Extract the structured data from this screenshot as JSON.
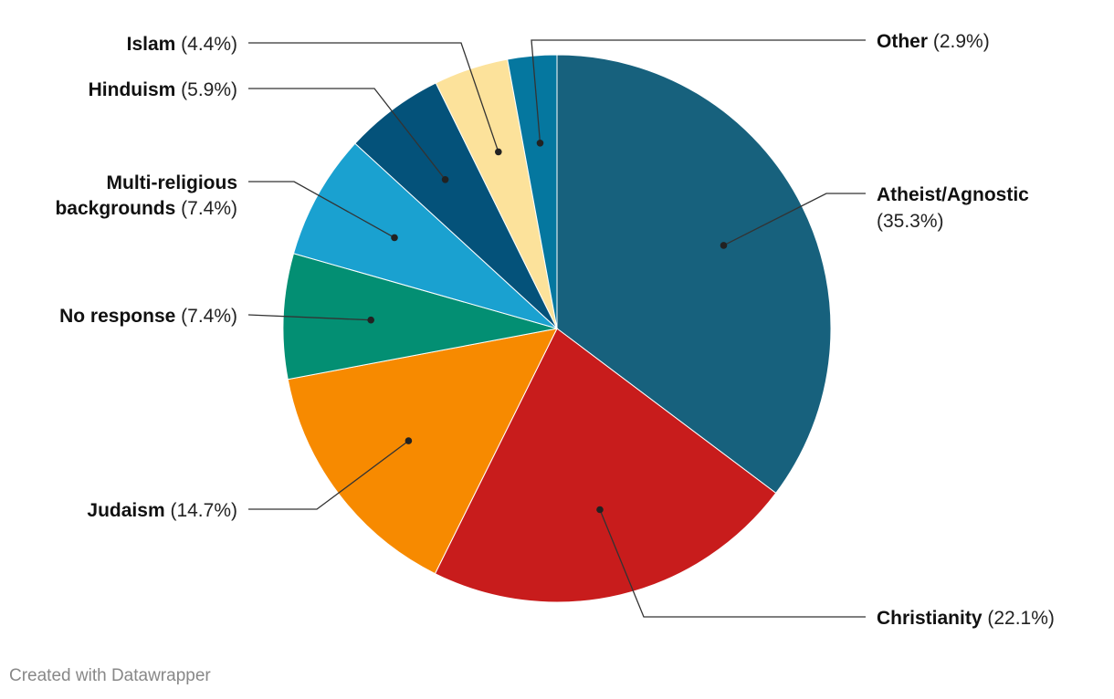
{
  "chart_data": {
    "type": "pie",
    "slices": [
      {
        "label": "Atheist/Agnostic",
        "value": 35.3,
        "pct_text": "(35.3%)",
        "color": "#17617d"
      },
      {
        "label": "Christianity",
        "value": 22.1,
        "pct_text": "(22.1%)",
        "color": "#c81c1c"
      },
      {
        "label": "Judaism",
        "value": 14.7,
        "pct_text": "(14.7%)",
        "color": "#f78a00"
      },
      {
        "label": "No response",
        "value": 7.4,
        "pct_text": "(7.4%)",
        "color": "#038f73"
      },
      {
        "label": "Multi-religious backgrounds",
        "value": 7.4,
        "pct_text": "(7.4%)",
        "color": "#1aa1d0"
      },
      {
        "label": "Hinduism",
        "value": 5.9,
        "pct_text": "(5.9%)",
        "color": "#04527a"
      },
      {
        "label": "Islam",
        "value": 4.4,
        "pct_text": "(4.4%)",
        "color": "#fce29b"
      },
      {
        "label": "Other",
        "value": 2.9,
        "pct_text": "(2.9%)",
        "color": "#05779f"
      }
    ]
  },
  "credit": "Created with Datawrapper"
}
